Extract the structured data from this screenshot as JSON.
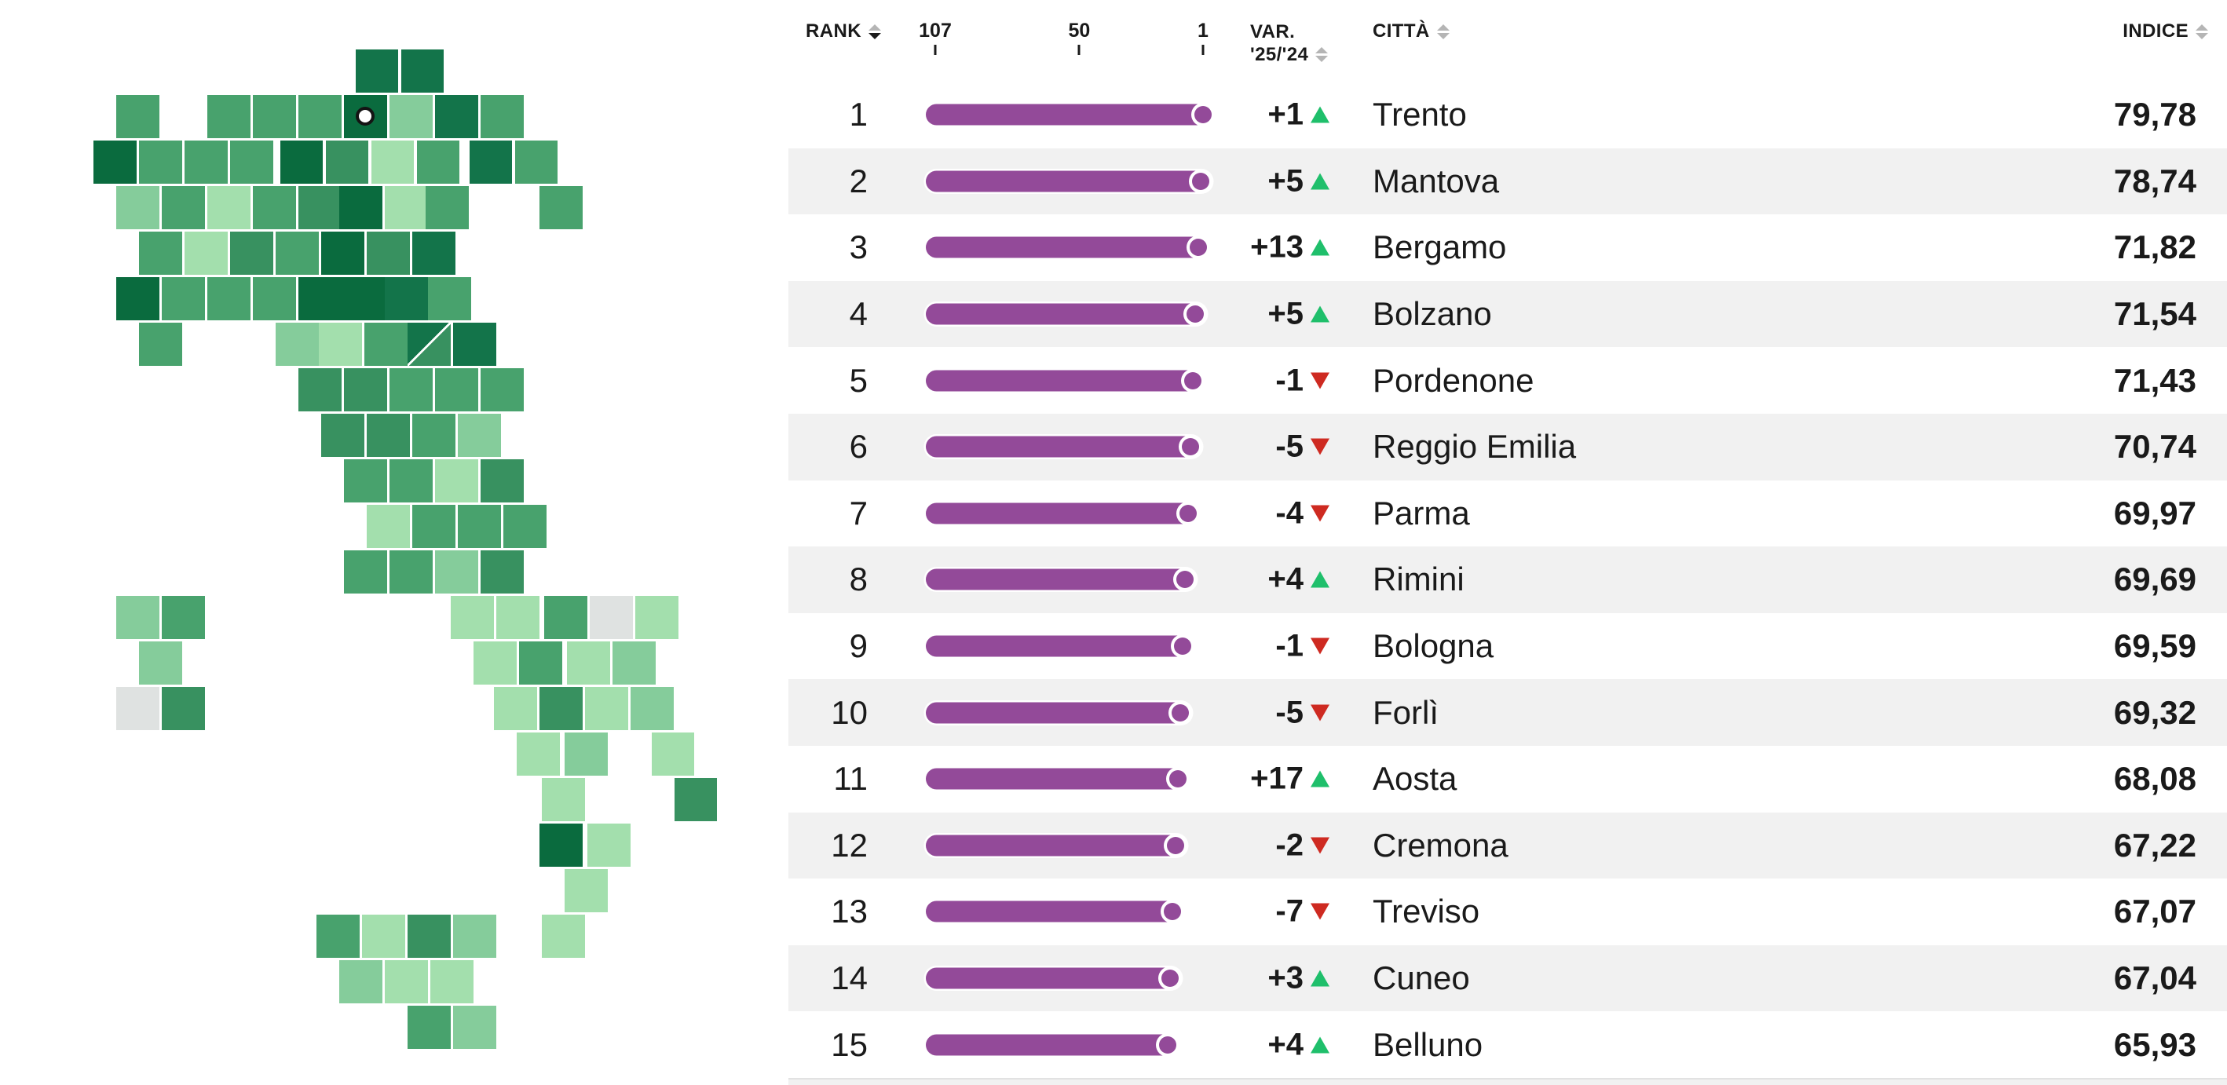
{
  "colors": {
    "bar": "#934a99",
    "up": "#1fbf6b",
    "down": "#ce2a21",
    "row_alt": "#f1f1f1",
    "sort_inactive": "#b5b5b5",
    "sort_active": "#1a1a1a",
    "marker_ring": "#141414",
    "text": "#1a1a1a"
  },
  "map": {
    "palette": {
      "g1": "#0a6b3e",
      "g2": "#13744a",
      "g3": "#389160",
      "g4": "#48a26d",
      "g5": "#85cc9b",
      "g6": "#a3dfad",
      "grey": "#dfe2e1"
    },
    "split": {
      "top_left": "g2",
      "bottom_right": "g3"
    },
    "tiles": [
      [
        5.25,
        0,
        "g2"
      ],
      [
        6.25,
        0,
        "g2"
      ],
      [
        0,
        1,
        "g4"
      ],
      [
        2,
        1,
        "g4"
      ],
      [
        3,
        1,
        "g4"
      ],
      [
        4,
        1,
        "g4"
      ],
      [
        5,
        1,
        "g1",
        "marker"
      ],
      [
        6,
        1,
        "g5"
      ],
      [
        7,
        1,
        "g2"
      ],
      [
        8,
        1,
        "g4"
      ],
      [
        -0.5,
        2,
        "g1"
      ],
      [
        0.5,
        2,
        "g4"
      ],
      [
        1.5,
        2,
        "g4"
      ],
      [
        2.5,
        2,
        "g4"
      ],
      [
        3.6,
        2,
        "g1"
      ],
      [
        4.6,
        2,
        "g3"
      ],
      [
        5.6,
        2,
        "g6"
      ],
      [
        6.6,
        2,
        "g4"
      ],
      [
        7.75,
        2,
        "g2"
      ],
      [
        8.75,
        2,
        "g4"
      ],
      [
        0,
        3,
        "g5"
      ],
      [
        1,
        3,
        "g4"
      ],
      [
        2,
        3,
        "g6"
      ],
      [
        3,
        3,
        "g4"
      ],
      [
        4,
        3,
        "g3"
      ],
      [
        4.9,
        3,
        "g1"
      ],
      [
        5.9,
        3,
        "g6"
      ],
      [
        6.8,
        3,
        "g4"
      ],
      [
        9.3,
        3,
        "g4"
      ],
      [
        0.5,
        4,
        "g4"
      ],
      [
        1.5,
        4,
        "g6"
      ],
      [
        2.5,
        4,
        "g3"
      ],
      [
        3.5,
        4,
        "g4"
      ],
      [
        4.5,
        4,
        "g1"
      ],
      [
        5.5,
        4,
        "g3"
      ],
      [
        6.5,
        4,
        "g2"
      ],
      [
        0,
        5,
        "g1"
      ],
      [
        1,
        5,
        "g4"
      ],
      [
        2,
        5,
        "g4"
      ],
      [
        3,
        5,
        "g4"
      ],
      [
        4,
        5,
        "g1"
      ],
      [
        4.95,
        5,
        "g1"
      ],
      [
        5.9,
        5,
        "g2"
      ],
      [
        6.85,
        5,
        "g4"
      ],
      [
        0.5,
        6,
        "g4"
      ],
      [
        3.5,
        6,
        "g5"
      ],
      [
        4.45,
        6,
        "g6"
      ],
      [
        5.45,
        6,
        "g4"
      ],
      [
        6.4,
        6,
        "split"
      ],
      [
        7.4,
        6,
        "g2"
      ],
      [
        4,
        7,
        "g3"
      ],
      [
        5,
        7,
        "g3"
      ],
      [
        6,
        7,
        "g4"
      ],
      [
        7,
        7,
        "g4"
      ],
      [
        8,
        7,
        "g4"
      ],
      [
        4.5,
        8,
        "g3"
      ],
      [
        5.5,
        8,
        "g3"
      ],
      [
        6.5,
        8,
        "g4"
      ],
      [
        7.5,
        8,
        "g5"
      ],
      [
        5,
        9,
        "g4"
      ],
      [
        6,
        9,
        "g4"
      ],
      [
        7,
        9,
        "g6"
      ],
      [
        8,
        9,
        "g3"
      ],
      [
        5.5,
        10,
        "g6"
      ],
      [
        6.5,
        10,
        "g4"
      ],
      [
        7.5,
        10,
        "g4"
      ],
      [
        8.5,
        10,
        "g4"
      ],
      [
        5,
        11,
        "g4"
      ],
      [
        6,
        11,
        "g4"
      ],
      [
        7,
        11,
        "g5"
      ],
      [
        8,
        11,
        "g3"
      ],
      [
        0,
        12,
        "g5"
      ],
      [
        1,
        12,
        "g4"
      ],
      [
        7.35,
        12,
        "g6"
      ],
      [
        8.35,
        12,
        "g6"
      ],
      [
        9.4,
        12,
        "g4"
      ],
      [
        10.4,
        12,
        "grey"
      ],
      [
        11.4,
        12,
        "g6"
      ],
      [
        0.5,
        13,
        "g5"
      ],
      [
        7.85,
        13,
        "g6"
      ],
      [
        8.85,
        13,
        "g4"
      ],
      [
        9.9,
        13,
        "g6"
      ],
      [
        10.9,
        13,
        "g5"
      ],
      [
        0,
        14,
        "grey"
      ],
      [
        1,
        14,
        "g3"
      ],
      [
        8.3,
        14,
        "g6"
      ],
      [
        9.3,
        14,
        "g3"
      ],
      [
        10.3,
        14,
        "g6"
      ],
      [
        11.3,
        14,
        "g5"
      ],
      [
        8.8,
        15,
        "g6"
      ],
      [
        9.85,
        15,
        "g5"
      ],
      [
        11.75,
        15,
        "g6"
      ],
      [
        9.35,
        16,
        "g6"
      ],
      [
        12.25,
        16,
        "g3"
      ],
      [
        9.3,
        17,
        "g1"
      ],
      [
        10.35,
        17,
        "g6"
      ],
      [
        9.85,
        18,
        "g6"
      ],
      [
        4.4,
        19,
        "g4"
      ],
      [
        5.4,
        19,
        "g6"
      ],
      [
        6.4,
        19,
        "g3"
      ],
      [
        7.4,
        19,
        "g5"
      ],
      [
        9.35,
        19,
        "g6"
      ],
      [
        4.9,
        20,
        "g5"
      ],
      [
        5.9,
        20,
        "g6"
      ],
      [
        6.9,
        20,
        "g6"
      ],
      [
        6.4,
        21,
        "g4"
      ],
      [
        7.4,
        21,
        "g5"
      ]
    ]
  },
  "table": {
    "columns": {
      "rank": {
        "label": "RANK"
      },
      "scale": {
        "ticks": [
          107,
          50,
          1
        ]
      },
      "var": {
        "label_line1": "VAR.",
        "label_line2": "'25/'24"
      },
      "city": {
        "label": "CITTÀ"
      },
      "index": {
        "label": "INDICE"
      }
    }
  },
  "chart_data": {
    "type": "table",
    "subtype": "ranking lollipop bars + choropleth tile map of Italy",
    "scale": {
      "domain": [
        107,
        1
      ],
      "ticks": [
        107,
        50,
        1
      ],
      "meaning": "rank position (1 = best of 107)"
    },
    "columns": [
      "RANK",
      "VAR. '25/'24",
      "CITTÀ",
      "INDICE"
    ],
    "rows": [
      {
        "rank": 1,
        "var": "+1",
        "dir": "up",
        "city": "Trento",
        "index": "79,78"
      },
      {
        "rank": 2,
        "var": "+5",
        "dir": "up",
        "city": "Mantova",
        "index": "78,74"
      },
      {
        "rank": 3,
        "var": "+13",
        "dir": "up",
        "city": "Bergamo",
        "index": "71,82"
      },
      {
        "rank": 4,
        "var": "+5",
        "dir": "up",
        "city": "Bolzano",
        "index": "71,54"
      },
      {
        "rank": 5,
        "var": "-1",
        "dir": "down",
        "city": "Pordenone",
        "index": "71,43"
      },
      {
        "rank": 6,
        "var": "-5",
        "dir": "down",
        "city": "Reggio Emilia",
        "index": "70,74"
      },
      {
        "rank": 7,
        "var": "-4",
        "dir": "down",
        "city": "Parma",
        "index": "69,97"
      },
      {
        "rank": 8,
        "var": "+4",
        "dir": "up",
        "city": "Rimini",
        "index": "69,69"
      },
      {
        "rank": 9,
        "var": "-1",
        "dir": "down",
        "city": "Bologna",
        "index": "69,59"
      },
      {
        "rank": 10,
        "var": "-5",
        "dir": "down",
        "city": "Forlì",
        "index": "69,32"
      },
      {
        "rank": 11,
        "var": "+17",
        "dir": "up",
        "city": "Aosta",
        "index": "68,08"
      },
      {
        "rank": 12,
        "var": "-2",
        "dir": "down",
        "city": "Cremona",
        "index": "67,22"
      },
      {
        "rank": 13,
        "var": "-7",
        "dir": "down",
        "city": "Treviso",
        "index": "67,07"
      },
      {
        "rank": 14,
        "var": "+3",
        "dir": "up",
        "city": "Cuneo",
        "index": "67,04"
      },
      {
        "rank": 15,
        "var": "+4",
        "dir": "up",
        "city": "Belluno",
        "index": "65,93"
      }
    ]
  }
}
